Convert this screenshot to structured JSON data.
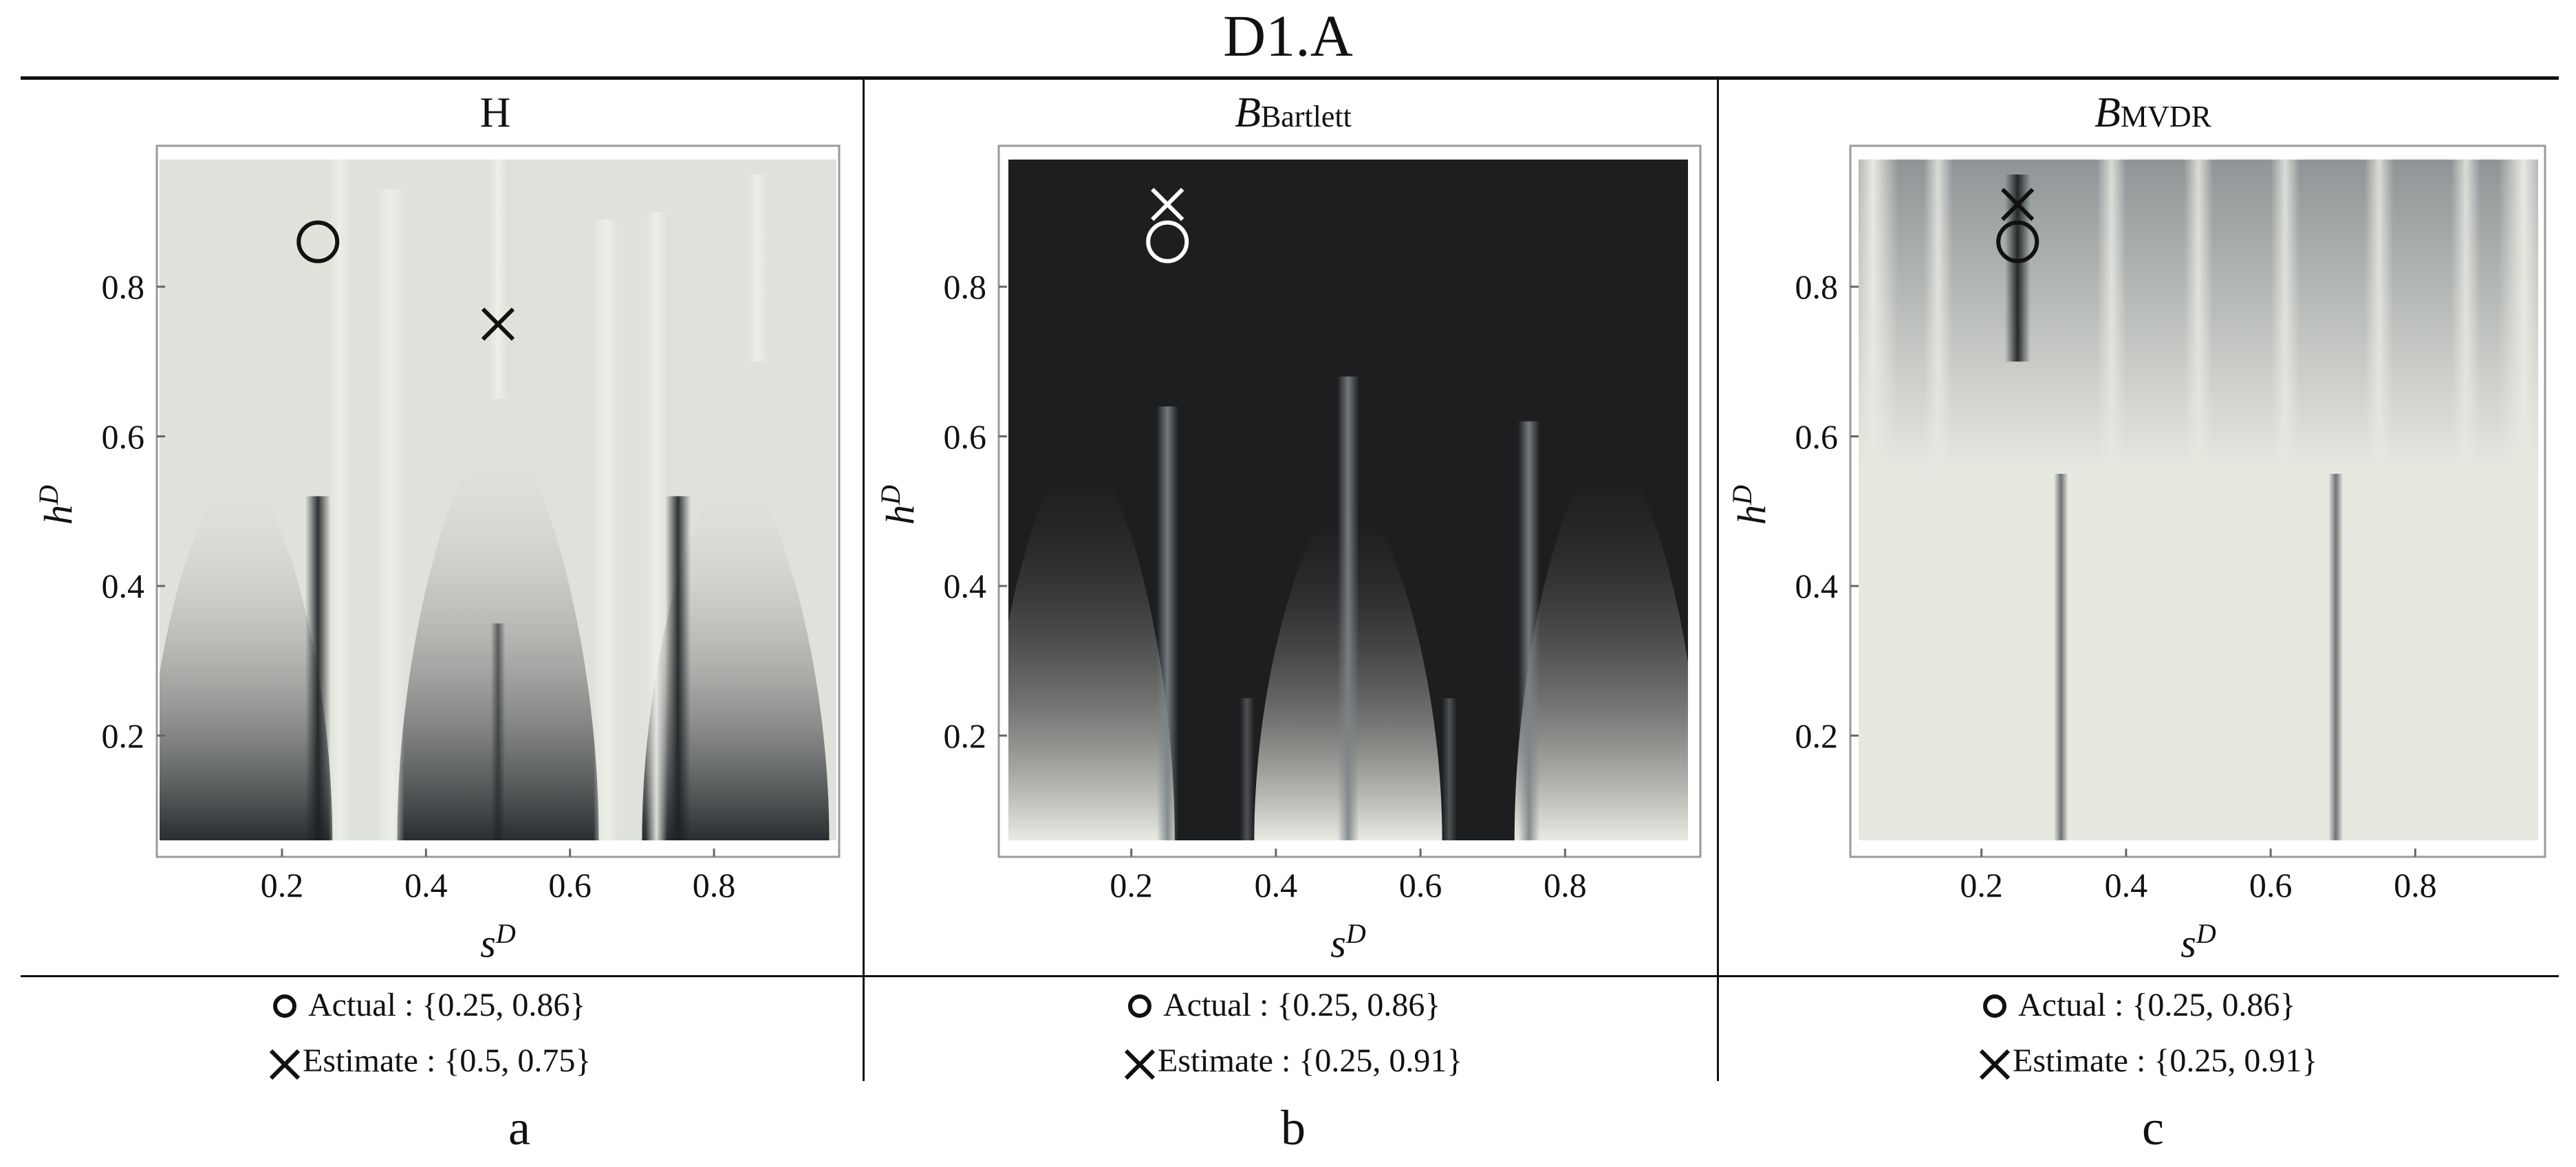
{
  "figure": {
    "title": "D1.A"
  },
  "chart_data": [
    {
      "type": "heatmap",
      "panel_letter": "a",
      "title_main": "H",
      "title_sub": "",
      "xlabel": "s",
      "xlabel_sup": "D",
      "ylabel": "h",
      "ylabel_sup": "D",
      "xlim": [
        0.03,
        0.97
      ],
      "ylim": [
        0.06,
        0.97
      ],
      "xticks": [
        "0.2",
        "0.4",
        "0.6",
        "0.8"
      ],
      "yticks": [
        "0.2",
        "0.4",
        "0.6",
        "0.8"
      ],
      "background_color": "#dfe2da",
      "colors": {
        "light": "#dfe2da",
        "dark": "#2a2d31",
        "highlight": "#edf0e8"
      },
      "actual": {
        "x": 0.25,
        "y": 0.86
      },
      "estimate": {
        "x": 0.5,
        "y": 0.75
      },
      "marker_color": "#111111",
      "legend_actual": "Actual : {0.25, 0.86}",
      "legend_estimate": "Estimate : {0.5, 0.75}"
    },
    {
      "type": "heatmap",
      "panel_letter": "b",
      "title_main": "B",
      "title_sub": "Bartlett",
      "xlabel": "s",
      "xlabel_sup": "D",
      "ylabel": "h",
      "ylabel_sup": "D",
      "xlim": [
        0.03,
        0.97
      ],
      "ylim": [
        0.06,
        0.97
      ],
      "xticks": [
        "0.2",
        "0.4",
        "0.6",
        "0.8"
      ],
      "yticks": [
        "0.2",
        "0.4",
        "0.6",
        "0.8"
      ],
      "background_color": "#1d1e20",
      "colors": {
        "light": "#e9eae2",
        "dark": "#1d1e20"
      },
      "actual": {
        "x": 0.25,
        "y": 0.86
      },
      "estimate": {
        "x": 0.25,
        "y": 0.91
      },
      "marker_color": "#ffffff",
      "legend_actual": "Actual : {0.25, 0.86}",
      "legend_estimate": "Estimate : {0.25, 0.91}"
    },
    {
      "type": "heatmap",
      "panel_letter": "c",
      "title_main": "B",
      "title_sub": "MVDR",
      "xlabel": "s",
      "xlabel_sup": "D",
      "ylabel": "h",
      "ylabel_sup": "D",
      "xlim": [
        0.03,
        0.97
      ],
      "ylim": [
        0.06,
        0.97
      ],
      "xticks": [
        "0.2",
        "0.4",
        "0.6",
        "0.8"
      ],
      "yticks": [
        "0.2",
        "0.4",
        "0.6",
        "0.8"
      ],
      "background_color": "#e7e8e0",
      "colors": {
        "light": "#e7e8e0",
        "dark": "#8f9597",
        "black": "#1e2124"
      },
      "actual": {
        "x": 0.25,
        "y": 0.86
      },
      "estimate": {
        "x": 0.25,
        "y": 0.91
      },
      "marker_color": "#111111",
      "legend_actual": "Actual : {0.25, 0.86}",
      "legend_estimate": "Estimate : {0.25, 0.91}"
    }
  ]
}
